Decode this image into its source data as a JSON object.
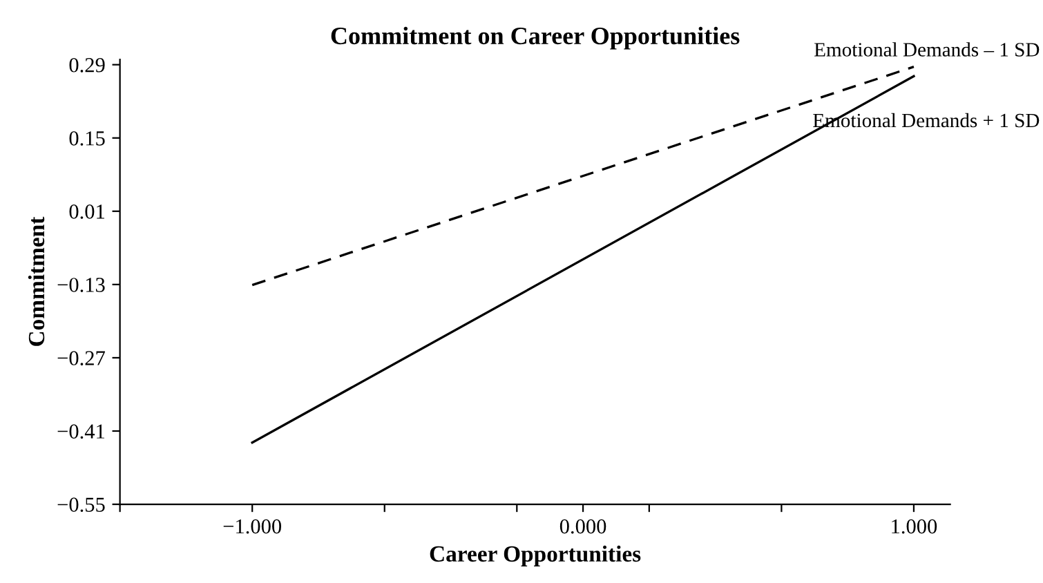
{
  "chart_data": {
    "type": "line",
    "title": "Commitment on Career Opportunities",
    "xlabel": "Career Opportunities",
    "ylabel": "Commitment",
    "x": [
      -1.0,
      1.0
    ],
    "series": [
      {
        "name": "Emotional Demands – 1 SD",
        "color": "#000000",
        "line_style": "dashed",
        "values": [
          -0.131,
          0.286
        ]
      },
      {
        "name": "Emotional Demands + 1 SD",
        "color": "#000000",
        "line_style": "solid",
        "values": [
          -0.432,
          0.268
        ]
      }
    ],
    "xlim": [
      -1.4,
      1.11
    ],
    "xticks": [
      {
        "value": -1.4,
        "label": null
      },
      {
        "value": -1.0,
        "label": "−1.000"
      },
      {
        "value": -0.6,
        "label": null
      },
      {
        "value": -0.2,
        "label": null
      },
      {
        "value": 0.0,
        "label": "0.000"
      },
      {
        "value": 0.2,
        "label": null
      },
      {
        "value": 0.6,
        "label": null
      },
      {
        "value": 1.0,
        "label": "1.000"
      }
    ],
    "ylim": [
      -0.55,
      0.3
    ],
    "yticks": [
      {
        "value": 0.29,
        "label": "0.29"
      },
      {
        "value": 0.15,
        "label": "0.15"
      },
      {
        "value": 0.01,
        "label": "0.01"
      },
      {
        "value": -0.13,
        "label": "−0.13"
      },
      {
        "value": -0.27,
        "label": "−0.27"
      },
      {
        "value": -0.41,
        "label": "−0.41"
      },
      {
        "value": -0.55,
        "label": "−0.55"
      }
    ],
    "grid": false,
    "legend": false,
    "marker": "none"
  }
}
